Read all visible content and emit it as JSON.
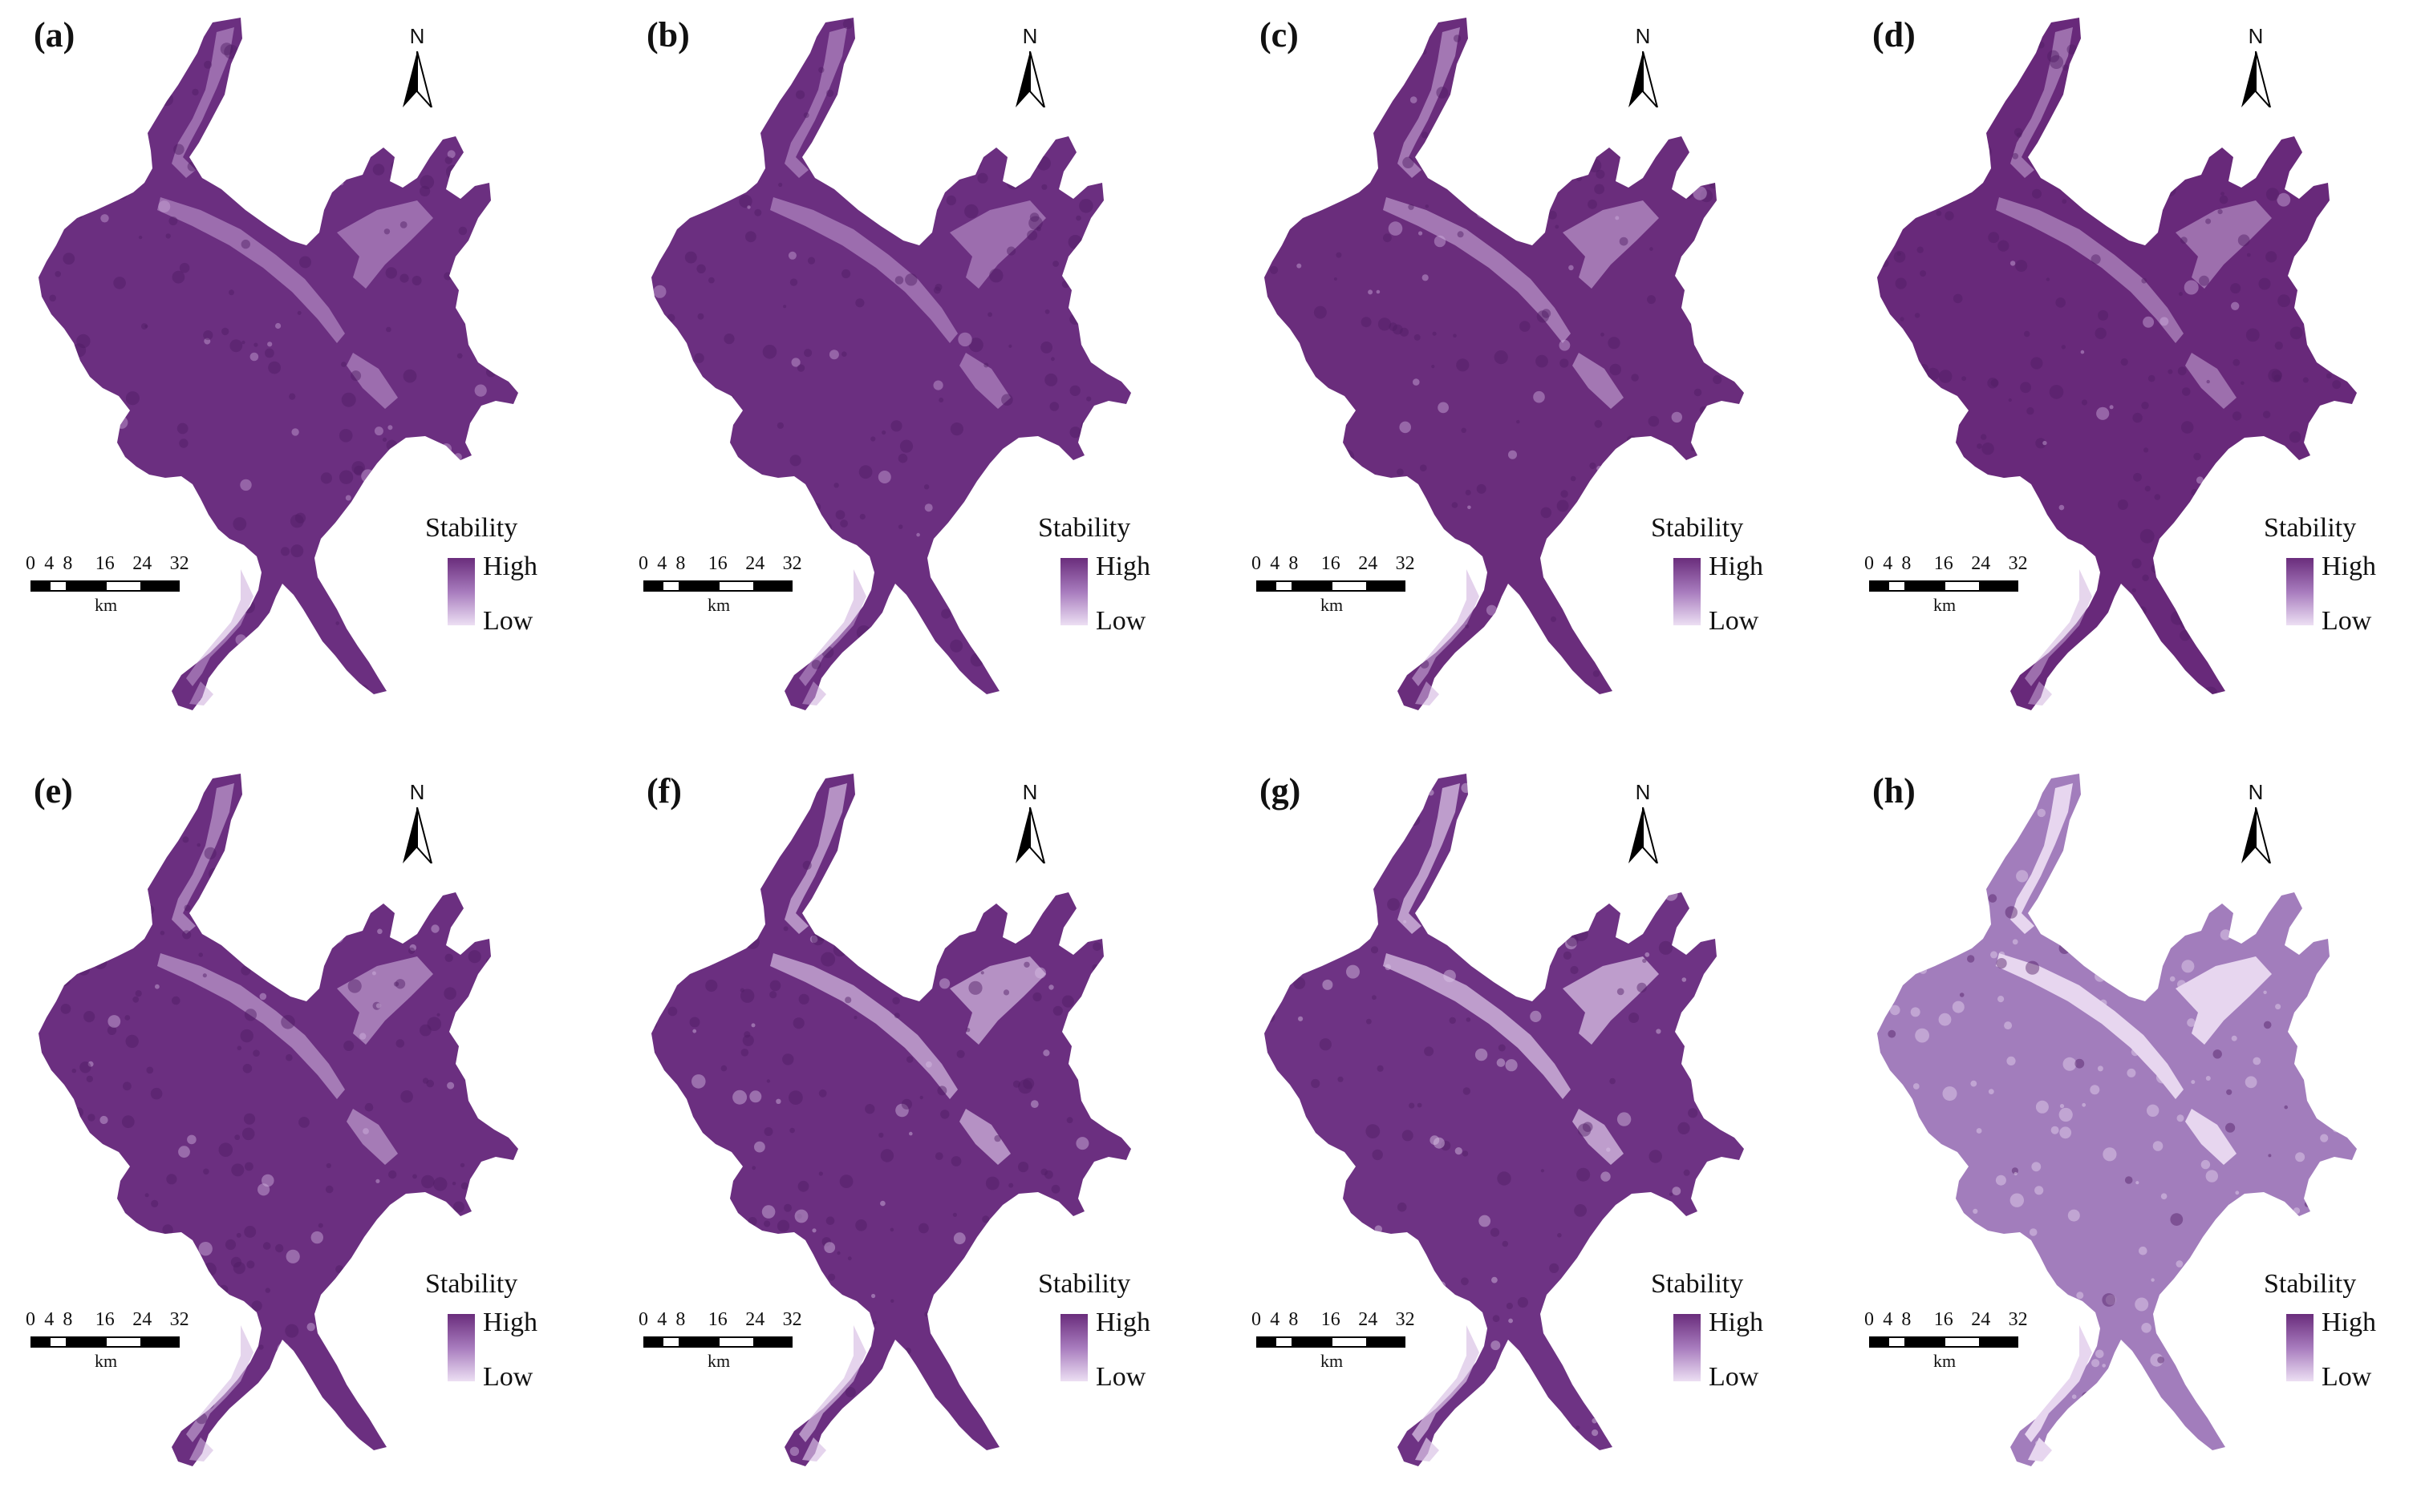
{
  "legend": {
    "title": "Stability",
    "high": "High",
    "low": "Low",
    "ramp_colors": [
      "#6a2d7c",
      "#a77bbd",
      "#ecdff3"
    ]
  },
  "north_arrow": {
    "letter": "N",
    "icon": "north-arrow-icon"
  },
  "scale_bar": {
    "ticks": [
      "0",
      "4",
      "8",
      "16",
      "24",
      "32"
    ],
    "unit": "km"
  },
  "panels": [
    {
      "label": "(a)",
      "dark_share": 0.85,
      "base_color": "#6b2f80",
      "light_color": "#c9a6d8"
    },
    {
      "label": "(b)",
      "dark_share": 0.85,
      "base_color": "#6b2f80",
      "light_color": "#c9a6d8"
    },
    {
      "label": "(c)",
      "dark_share": 0.8,
      "base_color": "#6a2d7c",
      "light_color": "#cfb0dd"
    },
    {
      "label": "(d)",
      "dark_share": 0.85,
      "base_color": "#68297a",
      "light_color": "#cfb0dd"
    },
    {
      "label": "(e)",
      "dark_share": 0.8,
      "base_color": "#6b2f80",
      "light_color": "#d2b5df"
    },
    {
      "label": "(f)",
      "dark_share": 0.7,
      "base_color": "#6b2f80",
      "light_color": "#d8bfe4"
    },
    {
      "label": "(g)",
      "dark_share": 0.65,
      "base_color": "#6e3384",
      "light_color": "#dcc5e7"
    },
    {
      "label": "(h)",
      "dark_share": 0.25,
      "base_color": "#a27dbc",
      "light_color": "#e7d6ef"
    }
  ]
}
